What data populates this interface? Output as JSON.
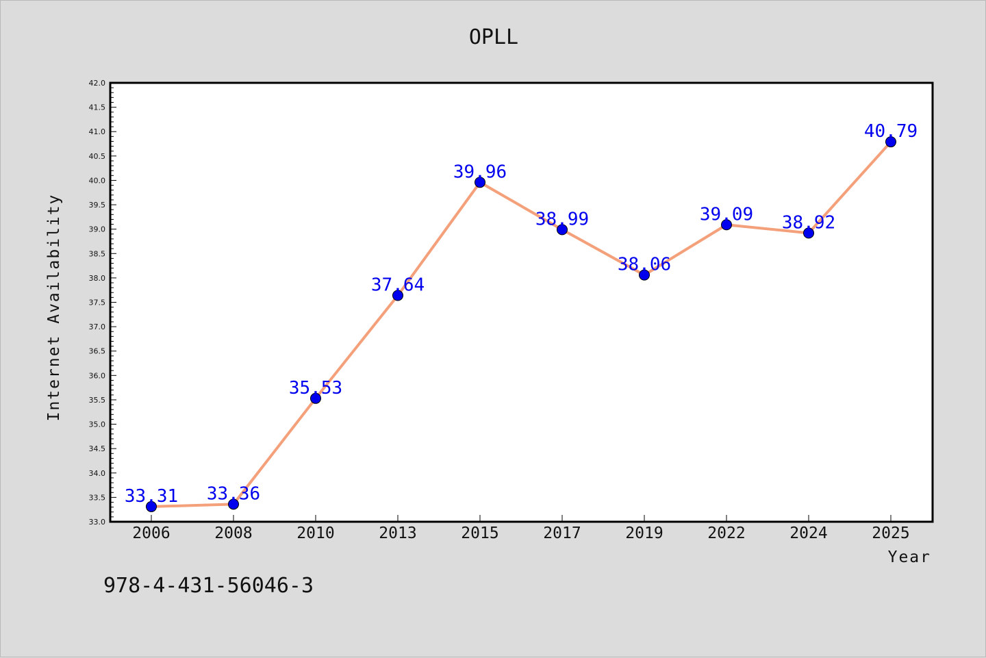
{
  "chart_data": {
    "type": "line",
    "title": "OPLL",
    "xlabel": "Year",
    "ylabel": "Internet Availability",
    "categories": [
      "2006",
      "2008",
      "2010",
      "2013",
      "2015",
      "2017",
      "2019",
      "2022",
      "2024",
      "2025"
    ],
    "series": [
      {
        "values": [
          33.31,
          33.36,
          35.53,
          37.64,
          39.96,
          38.99,
          38.06,
          39.09,
          38.92,
          40.79
        ],
        "labels": [
          "33.31",
          "33.36",
          "35.53",
          "37.64",
          "39.96",
          "38.99",
          "38.06",
          "39.09",
          "38.92",
          "40.79"
        ],
        "line_color": "#f4a07a",
        "marker_color": "#0000ee"
      }
    ],
    "ylim": [
      33.0,
      42.0
    ],
    "yticks": [
      "33.0",
      "33.5",
      "34.0",
      "34.5",
      "35.0",
      "35.5",
      "36.0",
      "36.5",
      "37.0",
      "37.5",
      "38.0",
      "38.5",
      "39.0",
      "39.5",
      "40.0",
      "40.5",
      "41.0",
      "41.5",
      "42.0"
    ],
    "grid": false,
    "legend": "none"
  },
  "footer_text": "978-4-431-56046-3"
}
